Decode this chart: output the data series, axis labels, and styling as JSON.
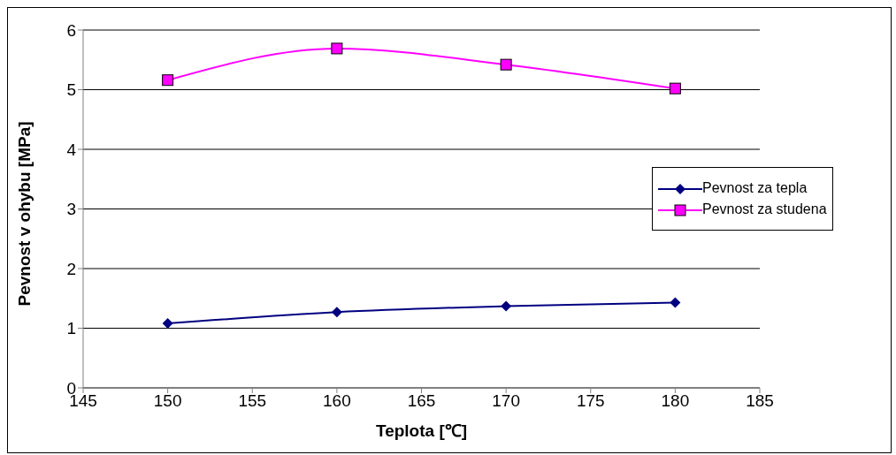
{
  "chart_data": {
    "type": "line",
    "xlabel": "Teplota [℃]",
    "ylabel": "Pevnost v ohybu [MPa]",
    "x": [
      150,
      160,
      170,
      180
    ],
    "series": [
      {
        "name": "Pevnost za tepla",
        "color": "#000080",
        "values": [
          1.08,
          1.27,
          1.37,
          1.43
        ],
        "marker": "diamond"
      },
      {
        "name": "Pevnost za studena",
        "color": "#ff00ff",
        "values": [
          5.16,
          5.69,
          5.42,
          5.02
        ],
        "marker": "square"
      }
    ],
    "xlim": [
      145,
      185
    ],
    "xticks": [
      145,
      150,
      155,
      160,
      165,
      170,
      175,
      180,
      185
    ],
    "ylim": [
      0,
      6
    ],
    "yticks": [
      0,
      1,
      2,
      3,
      4,
      5,
      6
    ],
    "grid": "y",
    "legend": "right",
    "line_style": "solid"
  }
}
